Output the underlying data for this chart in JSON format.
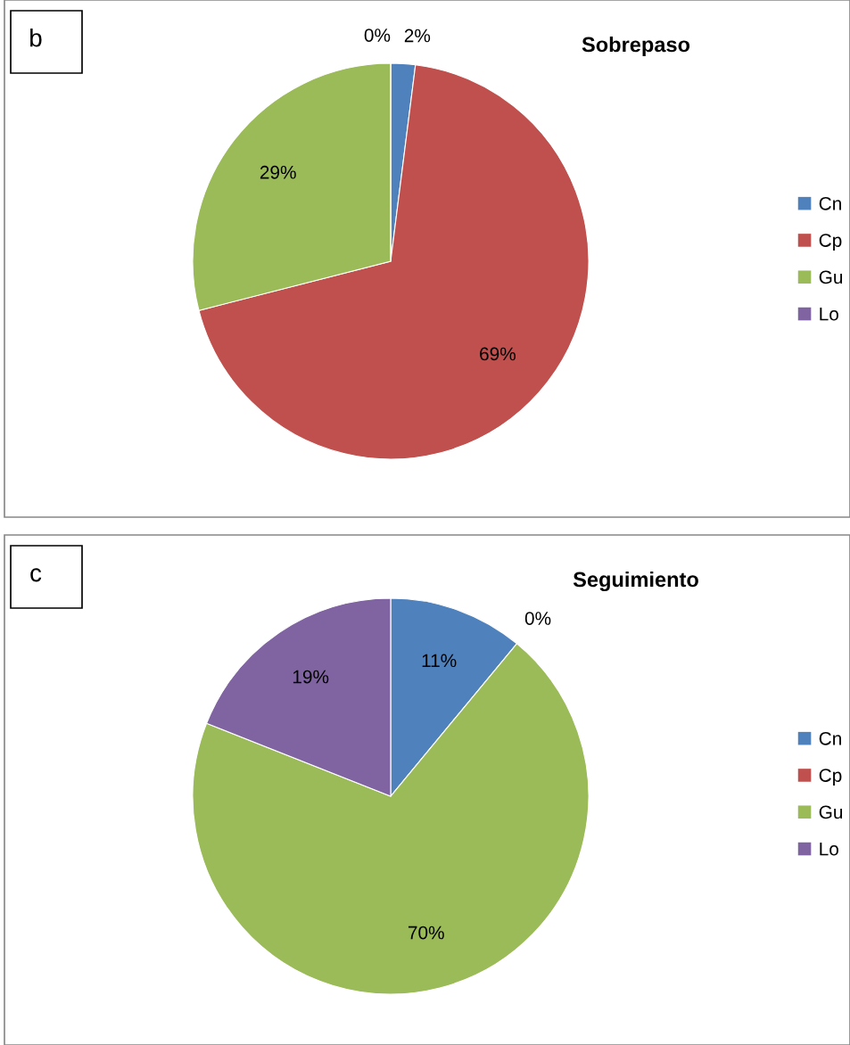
{
  "chart_data": [
    {
      "type": "pie",
      "title": "Sobrepaso",
      "annotations": [
        "b"
      ],
      "categories": [
        "Cn",
        "Cp",
        "Gu",
        "Lo"
      ],
      "values": [
        2,
        69,
        29,
        0
      ],
      "value_labels": [
        "2%",
        "69%",
        "29%",
        "0%"
      ],
      "colors": [
        "#4f81bd",
        "#c0504d",
        "#9bbb59",
        "#8064a2"
      ],
      "legend": "right"
    },
    {
      "type": "pie",
      "title": "Seguimiento",
      "annotations": [
        "c"
      ],
      "categories": [
        "Cn",
        "Cp",
        "Gu",
        "Lo"
      ],
      "values": [
        11,
        0,
        70,
        19
      ],
      "value_labels": [
        "11%",
        "0%",
        "70%",
        "19%"
      ],
      "colors": [
        "#4f81bd",
        "#c0504d",
        "#9bbb59",
        "#8064a2"
      ],
      "legend": "right"
    }
  ]
}
